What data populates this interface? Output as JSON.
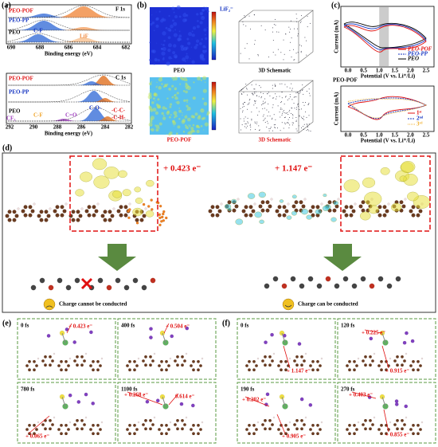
{
  "panel_a": {
    "label": "(a)",
    "top": {
      "element": "F 1s",
      "samples": [
        "PEO-POF",
        "PEO-PP",
        "PEO"
      ],
      "peaks": [
        "C-F",
        "LiF"
      ],
      "xticks": [
        "690",
        "688",
        "686",
        "684",
        "682"
      ],
      "xlabel": "Binding energy (eV)"
    },
    "bottom": {
      "element": "C 1s",
      "samples": [
        "PEO-POF",
        "PEO-PP",
        "PEO"
      ],
      "peaks": [
        "CF₃",
        "C-F",
        "C=O",
        "C-O-",
        "-C-C-",
        "-C-H-"
      ],
      "xticks": [
        "292",
        "290",
        "288",
        "286",
        "284",
        "282"
      ],
      "xlabel": "Binding energy (eV)"
    }
  },
  "panel_b": {
    "label": "(b)",
    "legend": "LiF₂⁻",
    "top": {
      "caption": "PEO",
      "schematic": "3D Schematic"
    },
    "bottom": {
      "caption": "PEO-POF",
      "schematic": "3D Schematic"
    }
  },
  "panel_c": {
    "label": "(c)",
    "top": {
      "legend": [
        "PEO-POF",
        "PEO-PP",
        "PEO"
      ],
      "ylabel": "Current (mA)",
      "xlabel": "Potential (V vs. Li⁺/Li)",
      "xticks": [
        "0.0",
        "0.5",
        "1.0",
        "1.5",
        "2.0",
        "2.5"
      ]
    },
    "bottom": {
      "title": "PEO-POF",
      "legend": [
        "1ˢᵗ",
        "2ⁿᵈ",
        "3ʳᵈ"
      ],
      "ylabel": "Current (mA)",
      "xlabel": "Potential (V vs. Li⁺/Li)",
      "xticks": [
        "0.0",
        "0.5",
        "1.0",
        "1.5",
        "2.0",
        "2.5"
      ]
    }
  },
  "panel_d": {
    "label": "(d)",
    "charges": [
      "+ 0.423 e⁻",
      "+ 1.147 e⁻"
    ],
    "captions": [
      "Charge cannot be conducted",
      "Charge can be conducted"
    ]
  },
  "panel_e": {
    "label": "(e)",
    "frames": [
      {
        "time": "0 fs",
        "charges": [
          "+ 0.423 e⁻"
        ]
      },
      {
        "time": "400 fs",
        "charges": [
          "+ 0.504 e⁻"
        ]
      },
      {
        "time": "780 fs",
        "charges": [
          "+ 0.065 e⁻"
        ]
      },
      {
        "time": "1100 fs",
        "charges": [
          "+ 0.268 e⁻",
          "0.614 e⁻"
        ]
      }
    ]
  },
  "panel_f": {
    "label": "(f)",
    "frames": [
      {
        "time": "0 fs",
        "charges": [
          "+ 1.147 e⁻"
        ]
      },
      {
        "time": "120 fs",
        "charges": [
          "+ 0.225 e⁻",
          "+ 0.915 e⁻"
        ]
      },
      {
        "time": "190 fs",
        "charges": [
          "+ 0.202 e⁻",
          "+ 0.905 e⁻"
        ]
      },
      {
        "time": "270 fs",
        "charges": [
          "+ 0.403 e⁻",
          "+ 0.855 e⁻"
        ]
      }
    ]
  }
}
